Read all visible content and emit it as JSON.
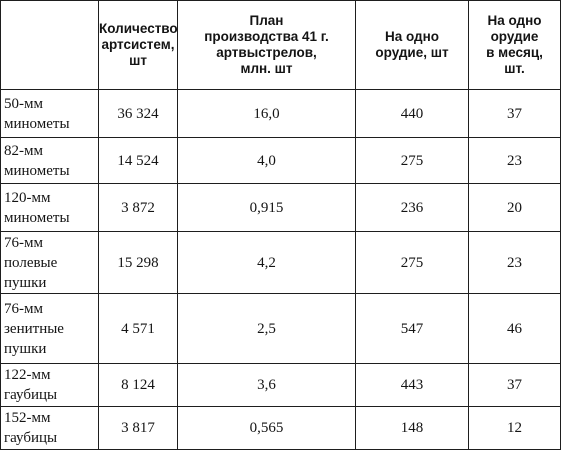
{
  "headers": [
    "",
    "Количество\nартсистем,\nшт",
    "План\nпроизводства 41 г.\nартвыстрелов,\nмлн. шт",
    "На одно\nорудие, шт",
    "На одно\nорудие\nв месяц,\nшт."
  ],
  "rows": [
    {
      "name": "50-мм\nминометы",
      "systems": "36 324",
      "plan": "16,0",
      "per_gun": "440",
      "per_month": "37"
    },
    {
      "name": "82-мм\nминометы",
      "systems": "14 524",
      "plan": "4,0",
      "per_gun": "275",
      "per_month": "23"
    },
    {
      "name": "120-мм\nминометы",
      "systems": "3 872",
      "plan": "0,915",
      "per_gun": "236",
      "per_month": "20"
    },
    {
      "name": "76-мм\nполевые\nпушки",
      "systems": "15 298",
      "plan": "4,2",
      "per_gun": "275",
      "per_month": "23"
    },
    {
      "name": "76-мм\nзенитные\nпушки",
      "systems": "4 571",
      "plan": "2,5",
      "per_gun": "547",
      "per_month": "46"
    },
    {
      "name": "122-мм\nгаубицы",
      "systems": "8 124",
      "plan": "3,6",
      "per_gun": "443",
      "per_month": "37"
    },
    {
      "name": "152-мм\nгаубицы",
      "systems": "3 817",
      "plan": "0,565",
      "per_gun": "148",
      "per_month": "12"
    }
  ]
}
